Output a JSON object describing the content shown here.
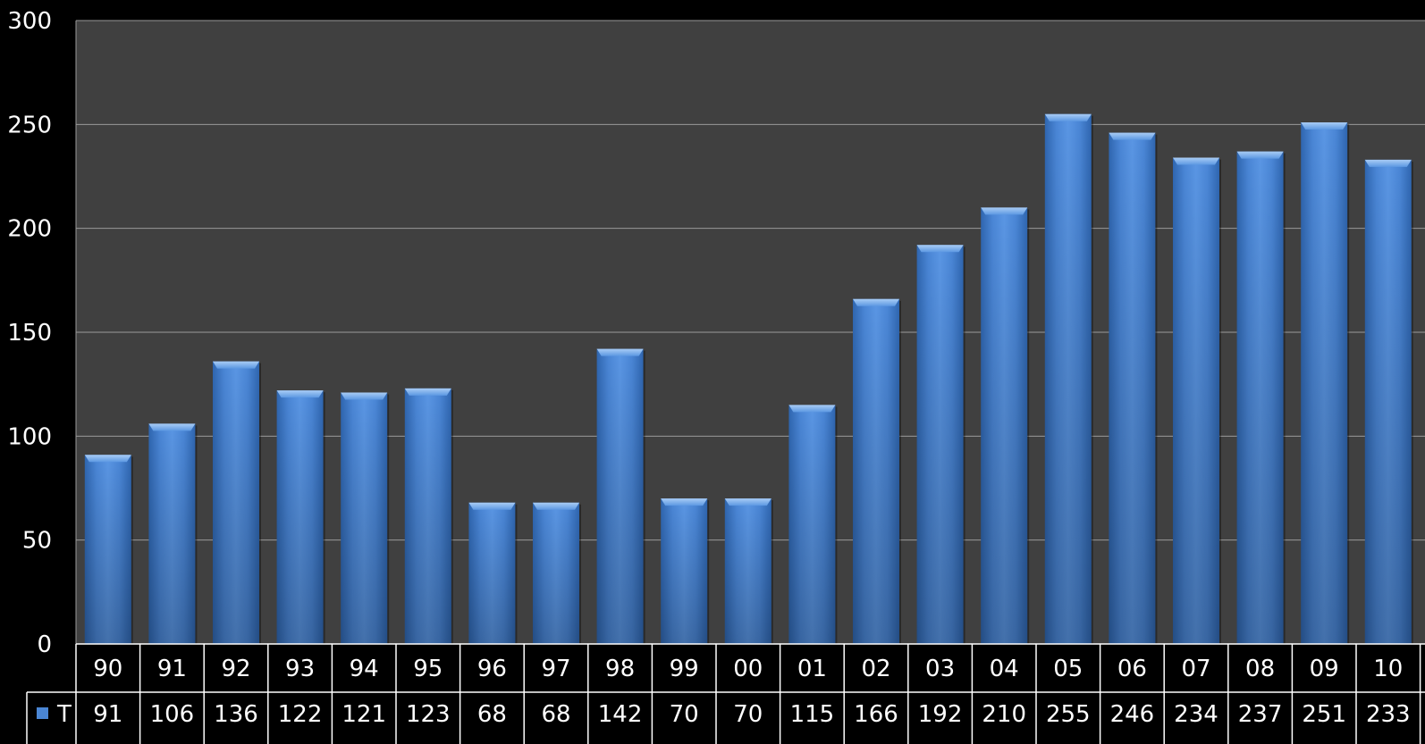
{
  "chart_data": {
    "type": "bar",
    "categories": [
      "90",
      "91",
      "92",
      "93",
      "94",
      "95",
      "96",
      "97",
      "98",
      "99",
      "00",
      "01",
      "02",
      "03",
      "04",
      "05",
      "06",
      "07",
      "08",
      "09",
      "10"
    ],
    "series": [
      {
        "name": "T",
        "values": [
          91,
          106,
          136,
          122,
          121,
          123,
          68,
          68,
          142,
          70,
          70,
          115,
          166,
          192,
          210,
          255,
          246,
          234,
          237,
          251,
          233
        ]
      }
    ],
    "data_table_values": [
      "91",
      "106",
      "136",
      "122",
      "121",
      "123",
      "68",
      "68",
      "142",
      "70",
      "70",
      "115",
      "166",
      "192",
      "210",
      "255",
      "246",
      "234",
      "237",
      "251",
      "233"
    ],
    "yticks": [
      "0",
      "50",
      "100",
      "150",
      "200",
      "250",
      "300"
    ],
    "ylim": [
      0,
      300
    ],
    "grid": true,
    "legend": "data-table-row",
    "colors": {
      "background": "#000000",
      "plot_area": "#404040",
      "bar": "#4a86d4",
      "gridline": "#9a9a9a",
      "table_border": "#ffffff"
    }
  }
}
